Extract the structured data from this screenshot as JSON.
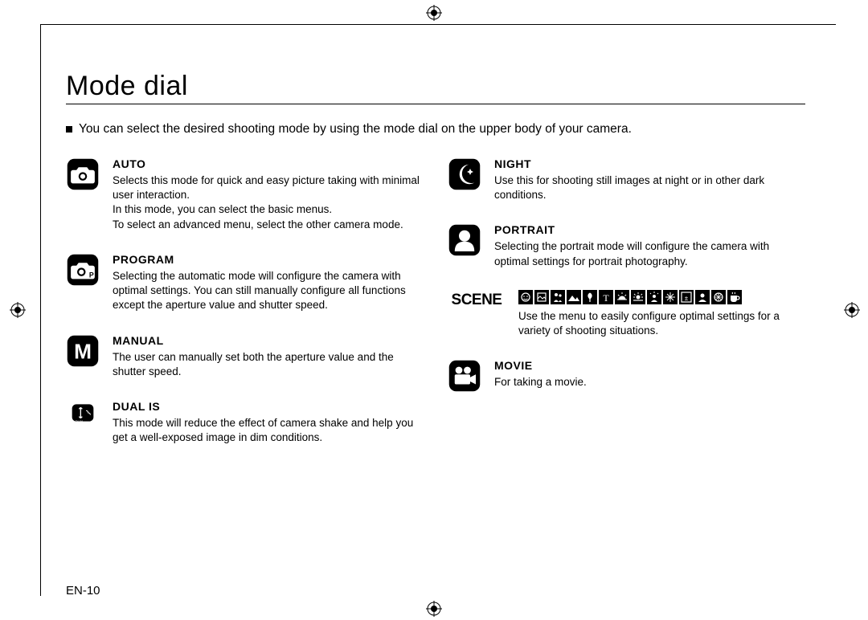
{
  "title": "Mode dial",
  "intro": "You can select the desired shooting mode by using the mode dial on the upper body of your camera.",
  "page_number": "EN-10",
  "left": [
    {
      "name": "AUTO",
      "desc": "Selects this mode for quick and easy picture taking with minimal user interaction.\nIn this mode, you can select the basic menus.\nTo select an advanced menu, select the other camera mode."
    },
    {
      "name": "PROGRAM",
      "desc": "Selecting the automatic mode will configure the camera with optimal settings. You can still manually configure all functions except the aperture value and shutter speed."
    },
    {
      "name": "MANUAL",
      "desc": "The user can manually set both the aperture value and the shutter speed."
    },
    {
      "name": "DUAL IS",
      "desc": "This mode will reduce the effect of camera shake and help you get a well-exposed image in dim conditions."
    }
  ],
  "right": [
    {
      "name": "NIGHT",
      "desc": "Use this for shooting still images at night or in other dark conditions."
    },
    {
      "name": "PORTRAIT",
      "desc": "Selecting the portrait mode will configure the camera with optimal settings for portrait photography."
    },
    {
      "name": "SCENE",
      "desc": "Use the menu to easily configure optimal settings for a variety of shooting situations.",
      "scene_label": "SCENE"
    },
    {
      "name": "MOVIE",
      "desc": "For taking a movie."
    }
  ],
  "colors": {
    "text": "#000000",
    "bg": "#ffffff"
  }
}
